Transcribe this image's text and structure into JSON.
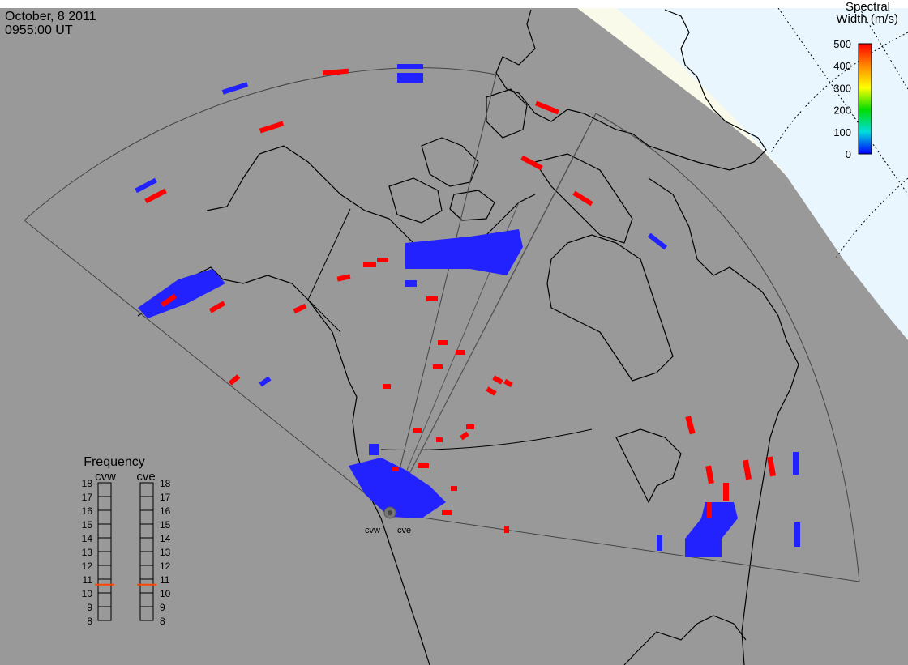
{
  "header": {
    "date": "October, 8 2011",
    "time": "0955:00 UT"
  },
  "colorbar": {
    "title_line1": "Spectral",
    "title_line2": "Width (m/s)",
    "ticks": [
      "500",
      "400",
      "300",
      "200",
      "100",
      "0"
    ],
    "stops": [
      "#ff0000",
      "#ff8800",
      "#ffff00",
      "#00dd00",
      "#00dddd",
      "#0000ff"
    ]
  },
  "frequency_panel": {
    "title": "Frequency",
    "radars": [
      "cvw",
      "cve"
    ],
    "scale": [
      "18",
      "17",
      "16",
      "15",
      "14",
      "13",
      "12",
      "11",
      "10",
      "9",
      "8"
    ],
    "cvw_value": 10.6,
    "cve_value": 10.6,
    "indicator_color": "#ff4400"
  },
  "radar_labels": [
    "cvw",
    "cve"
  ],
  "colors": {
    "background": "#999999",
    "land_outline": "#000000",
    "night_region": "#fafaeb",
    "day_region": "#eaf6fe",
    "high_width": "#ff0000",
    "low_width": "#2222ff"
  }
}
